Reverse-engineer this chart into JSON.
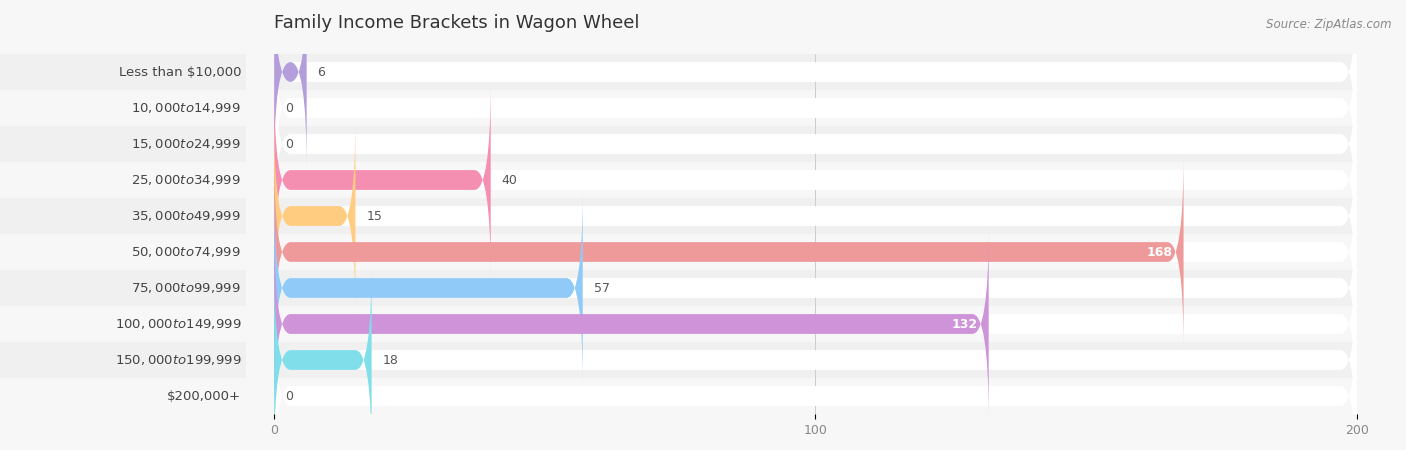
{
  "title": "Family Income Brackets in Wagon Wheel",
  "source": "Source: ZipAtlas.com",
  "background_color": "#f7f7f7",
  "row_colors": [
    "#f0f0f0",
    "#f7f7f7"
  ],
  "categories": [
    "Less than $10,000",
    "$10,000 to $14,999",
    "$15,000 to $24,999",
    "$25,000 to $34,999",
    "$35,000 to $49,999",
    "$50,000 to $74,999",
    "$75,000 to $99,999",
    "$100,000 to $149,999",
    "$150,000 to $199,999",
    "$200,000+"
  ],
  "values": [
    6,
    0,
    0,
    40,
    15,
    168,
    57,
    132,
    18,
    0
  ],
  "colors": [
    "#b39ddb",
    "#80cbc4",
    "#9fa8da",
    "#f48fb1",
    "#ffcc80",
    "#ef9a9a",
    "#90caf9",
    "#ce93d8",
    "#80deea",
    "#c5cae9"
  ],
  "xlim_max": 200,
  "xticks": [
    0,
    100,
    200
  ],
  "title_fontsize": 13,
  "label_fontsize": 9.5,
  "value_fontsize": 9,
  "source_fontsize": 8.5,
  "bar_height": 0.55
}
